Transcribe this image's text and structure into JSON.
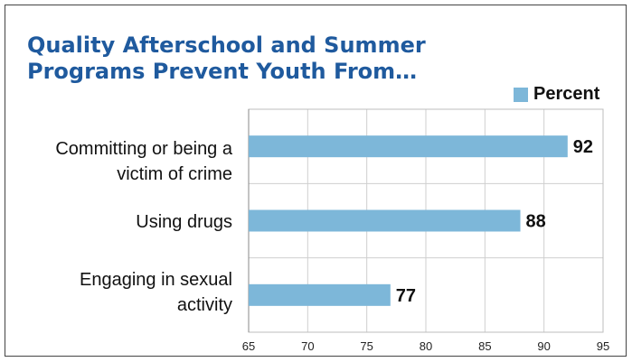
{
  "chart_data": {
    "type": "bar",
    "orientation": "horizontal",
    "title": "Quality Afterschool and Summer Programs Prevent Youth From…",
    "categories": [
      "Committing or being a victim of crime",
      "Using drugs",
      "Engaging in sexual activity"
    ],
    "category_labels": [
      "Committing or being a\nvictim of crime",
      "Using drugs",
      "Engaging in sexual\nactivity"
    ],
    "series": [
      {
        "name": "Percent",
        "values": [
          92,
          88,
          77
        ],
        "color": "#7db7d9"
      }
    ],
    "xlim": [
      65,
      95
    ],
    "xticks": [
      65,
      70,
      75,
      80,
      85,
      90,
      95
    ],
    "data_labels": [
      "92",
      "88",
      "77"
    ],
    "grid": "vertical",
    "legend_position": "top-right",
    "title_color": "#1f5a9e"
  }
}
